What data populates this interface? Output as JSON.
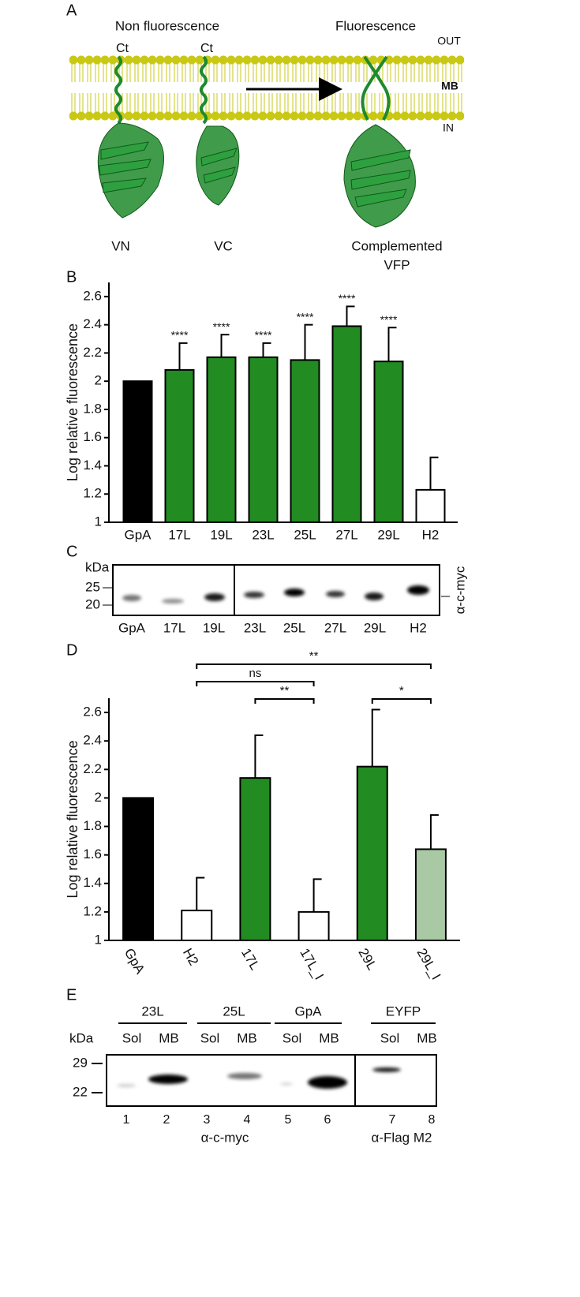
{
  "panel_labels": [
    "A",
    "B",
    "C",
    "D",
    "E"
  ],
  "panel_a": {
    "left_title": "Non fluorescence",
    "right_title": "Fluorescence",
    "out": "OUT",
    "mb": "MB",
    "in": "IN",
    "ct": [
      "Ct",
      "Ct"
    ],
    "vn": "VN",
    "vc": "VC",
    "complemented": [
      "Complemented",
      "VFP"
    ]
  },
  "chart_data": [
    {
      "type": "bar",
      "ylabel": "Log relative fluorescence",
      "categories": [
        "GpA",
        "17L",
        "19L",
        "23L",
        "25L",
        "27L",
        "29L",
        "H2"
      ],
      "values": [
        2.0,
        2.08,
        2.17,
        2.17,
        2.15,
        2.39,
        2.14,
        1.23
      ],
      "errors": [
        null,
        0.19,
        0.16,
        0.1,
        0.25,
        0.14,
        0.24,
        0.23
      ],
      "annotations": [
        null,
        "****",
        "****",
        "****",
        "****",
        "****",
        "****",
        null
      ],
      "colors": [
        "#000000",
        "#228b22",
        "#228b22",
        "#228b22",
        "#228b22",
        "#228b22",
        "#228b22",
        "#ffffff"
      ],
      "ylim": [
        1,
        2.7
      ],
      "yticks": [
        1,
        1.2,
        1.4,
        1.6,
        1.8,
        2,
        2.2,
        2.4,
        2.6
      ]
    },
    {
      "type": "bar",
      "ylabel": "Log relative fluorescence",
      "categories": [
        "GpA",
        "H2",
        "17L",
        "17L_I",
        "29L",
        "29L_I"
      ],
      "values": [
        2.0,
        1.21,
        2.14,
        1.2,
        2.22,
        1.64
      ],
      "errors": [
        null,
        0.23,
        0.3,
        0.23,
        0.4,
        0.24
      ],
      "colors": [
        "#000000",
        "#ffffff",
        "#228b22",
        "#ffffff",
        "#228b22",
        "#a9c9a4"
      ],
      "brackets": [
        "**",
        "ns",
        "**",
        "*"
      ],
      "ylim": [
        1,
        2.7
      ],
      "yticks": [
        1,
        1.2,
        1.4,
        1.6,
        1.8,
        2,
        2.2,
        2.4,
        2.6
      ]
    }
  ],
  "panel_c": {
    "unit": "kDa",
    "markers": [
      25,
      20
    ],
    "lanes": [
      "GpA",
      "17L",
      "19L",
      "23L",
      "25L",
      "27L",
      "29L",
      "H2"
    ],
    "antibody": "α-c-myc"
  },
  "panel_e": {
    "groups": [
      "23L",
      "25L",
      "GpA",
      "EYFP"
    ],
    "fractions": [
      "Sol",
      "MB",
      "Sol",
      "MB",
      "Sol",
      "MB",
      "Sol",
      "MB"
    ],
    "unit": "kDa",
    "markers": [
      29,
      22
    ],
    "lanes": [
      1,
      2,
      3,
      4,
      5,
      6,
      7,
      8
    ],
    "antibodies": [
      "α-c-myc",
      "α-Flag M2"
    ]
  }
}
